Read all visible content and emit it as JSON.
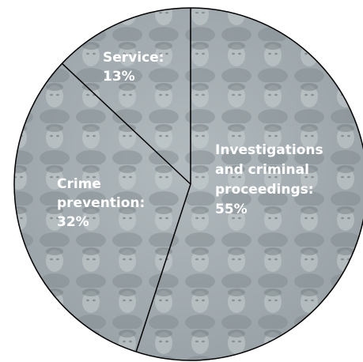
{
  "chart_data": {
    "type": "pie",
    "slices": [
      {
        "label_lines": [
          "Investigations",
          "and criminal",
          "proceedings:",
          "55%"
        ],
        "value": 55
      },
      {
        "label_lines": [
          "Crime",
          "prevention:",
          "32%"
        ],
        "value": 32
      },
      {
        "label_lines": [
          "Service:",
          "13%"
        ],
        "value": 13
      }
    ],
    "start_angle_deg": 0,
    "direction": "clockwise",
    "slice_fill": "#a7b0b4",
    "line_color": "#000000",
    "label_color": "#ffffff"
  }
}
